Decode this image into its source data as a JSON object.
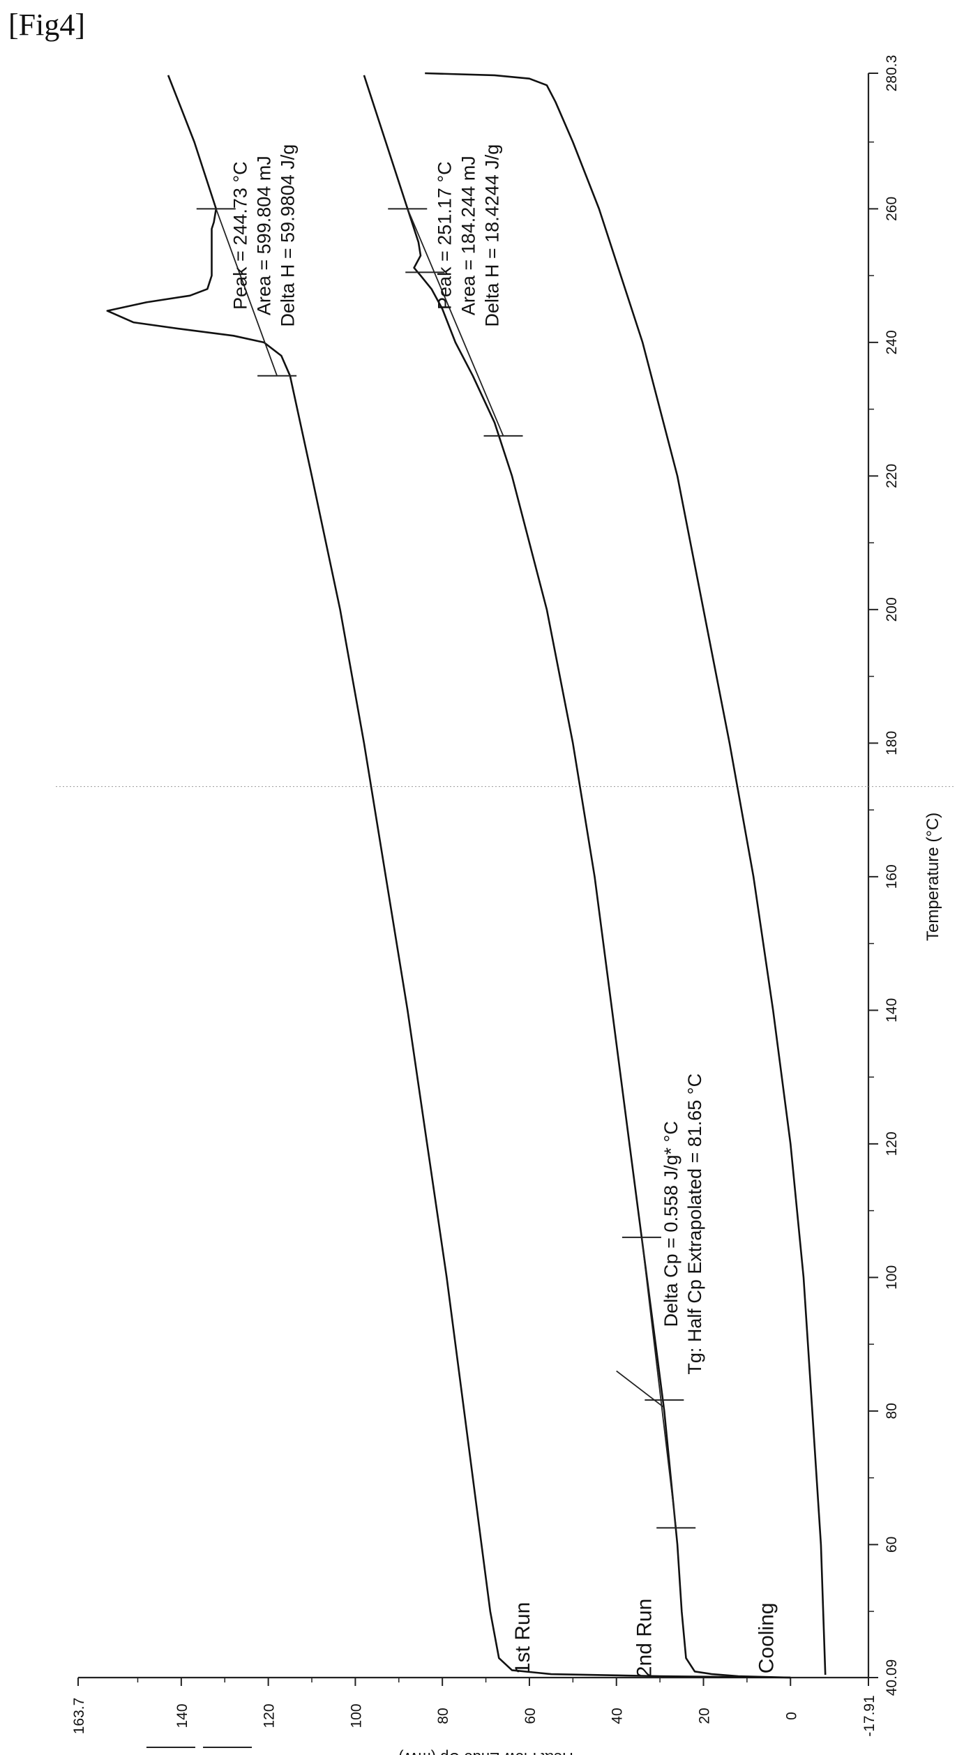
{
  "figure_label": "[Fig4]",
  "chart_data": {
    "type": "line",
    "orientation": "rotated-90",
    "xlabel": "Temperature (°C)",
    "ylabel": "Heat Flow Endo Up (mW)",
    "xlim": [
      40.09,
      280.3
    ],
    "ylim": [
      -17.91,
      163.7
    ],
    "x_ticks": [
      "40.09",
      "60",
      "80",
      "100",
      "120",
      "140",
      "160",
      "180",
      "200",
      "220",
      "240",
      "260",
      "280.3"
    ],
    "y_ticks": [
      "-17.91",
      "0",
      "20",
      "40",
      "60",
      "80",
      "100",
      "120",
      "140",
      "163.7"
    ],
    "series": [
      {
        "name": "1st Run",
        "points": [
          [
            40.09,
            0
          ],
          [
            40.3,
            30
          ],
          [
            40.6,
            55
          ],
          [
            41.2,
            64
          ],
          [
            43,
            67
          ],
          [
            50,
            69
          ],
          [
            60,
            71
          ],
          [
            80,
            75
          ],
          [
            100,
            79
          ],
          [
            120,
            83.5
          ],
          [
            140,
            88
          ],
          [
            160,
            93
          ],
          [
            180,
            98
          ],
          [
            200,
            103.5
          ],
          [
            220,
            110
          ],
          [
            235,
            115
          ],
          [
            238,
            117
          ],
          [
            240,
            121
          ],
          [
            241,
            128
          ],
          [
            242,
            140
          ],
          [
            243,
            151
          ],
          [
            244.73,
            157
          ],
          [
            246,
            148
          ],
          [
            247,
            138
          ],
          [
            248,
            134
          ],
          [
            250,
            133
          ],
          [
            255,
            133
          ],
          [
            257,
            133
          ],
          [
            258,
            132.5
          ],
          [
            260,
            132
          ],
          [
            265,
            134.5
          ],
          [
            270,
            137
          ],
          [
            275,
            140
          ],
          [
            280,
            143
          ]
        ]
      },
      {
        "name": "2nd Run",
        "points": [
          [
            40.09,
            0
          ],
          [
            40.3,
            12
          ],
          [
            40.6,
            18
          ],
          [
            41,
            22
          ],
          [
            43,
            24
          ],
          [
            50,
            25
          ],
          [
            60,
            26
          ],
          [
            70,
            27.5
          ],
          [
            80,
            29
          ],
          [
            90,
            31
          ],
          [
            100,
            33
          ],
          [
            120,
            37
          ],
          [
            140,
            41
          ],
          [
            160,
            45
          ],
          [
            180,
            50
          ],
          [
            200,
            56
          ],
          [
            220,
            64
          ],
          [
            228,
            68
          ],
          [
            235,
            73
          ],
          [
            240,
            77
          ],
          [
            245,
            80
          ],
          [
            248,
            82.5
          ],
          [
            250,
            85
          ],
          [
            251.17,
            86.5
          ],
          [
            253,
            85
          ],
          [
            255,
            85.5
          ],
          [
            260,
            88
          ],
          [
            270,
            93
          ],
          [
            280,
            98
          ]
        ]
      },
      {
        "name": "Cooling",
        "points": [
          [
            280.3,
            84
          ],
          [
            280,
            68
          ],
          [
            279.5,
            60
          ],
          [
            278.5,
            56
          ],
          [
            276,
            54
          ],
          [
            270,
            50
          ],
          [
            260,
            44
          ],
          [
            240,
            34
          ],
          [
            220,
            26
          ],
          [
            200,
            20
          ],
          [
            180,
            14
          ],
          [
            160,
            8.5
          ],
          [
            140,
            4
          ],
          [
            120,
            0
          ],
          [
            100,
            -3
          ],
          [
            80,
            -5
          ],
          [
            60,
            -7
          ],
          [
            40.5,
            -8
          ]
        ]
      }
    ],
    "annotations": [
      {
        "lines": [
          "Peak = 244.73  °C",
          "Area = 599.804 mJ",
          "Delta H = 59.9804 J/g"
        ]
      },
      {
        "lines": [
          "Peak = 251.17  °C",
          "Area = 184.244 mJ",
          "Delta H = 18.4244 J/g"
        ]
      },
      {
        "lines": [
          "Delta Cp = 0.558 J/g* °C",
          "Tg: Half Cp Extrapolated = 81.65  °C"
        ]
      }
    ],
    "baselines": [
      {
        "from": [
          235,
          118
        ],
        "to": [
          260,
          132
        ]
      },
      {
        "from": [
          226,
          66
        ],
        "to": [
          260,
          88
        ]
      },
      {
        "from": [
          62.5,
          26.3
        ],
        "to": [
          106,
          34.2
        ]
      }
    ],
    "markers": [
      [
        235,
        118
      ],
      [
        260,
        132
      ],
      [
        226,
        66
      ],
      [
        250.5,
        84
      ],
      [
        260,
        88
      ],
      [
        62.5,
        26.3
      ],
      [
        81.65,
        29
      ],
      [
        106,
        34.2
      ]
    ],
    "legend": "bottom-left",
    "grid": false
  }
}
